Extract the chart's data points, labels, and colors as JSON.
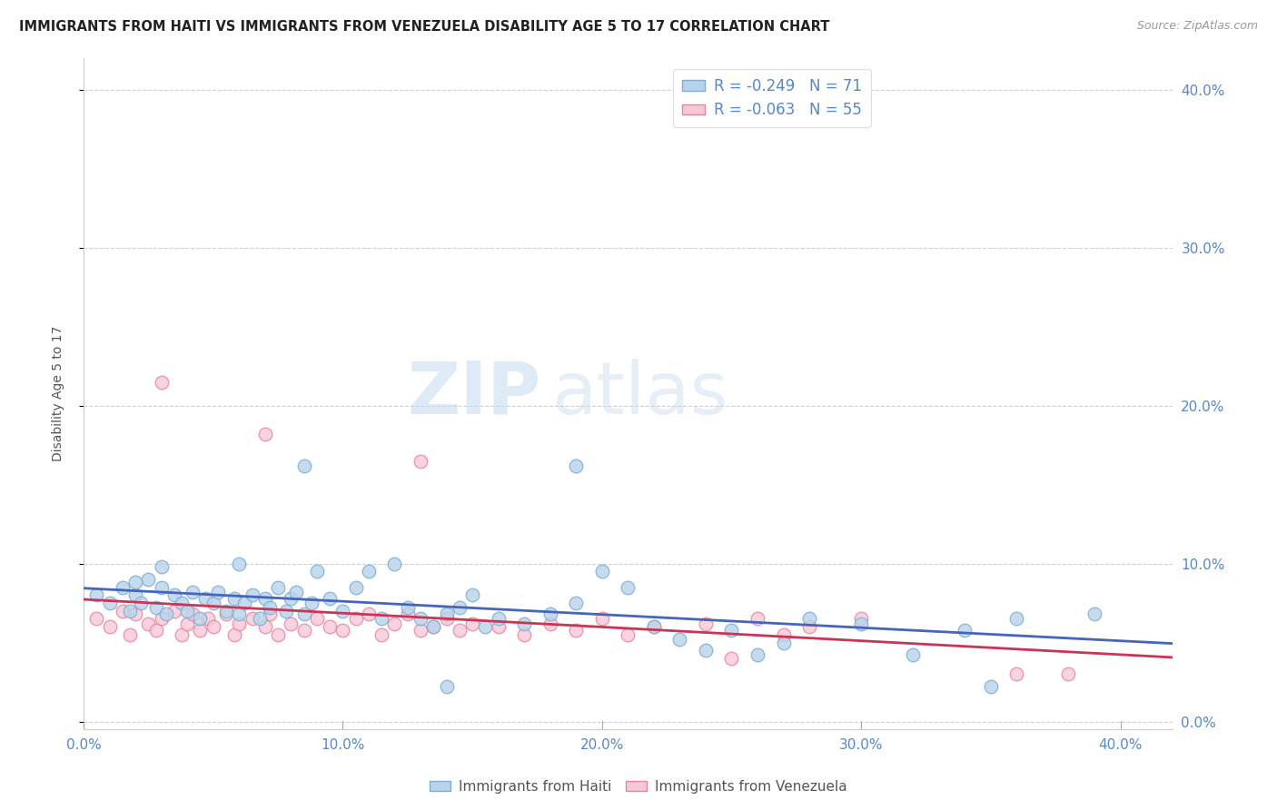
{
  "title": "IMMIGRANTS FROM HAITI VS IMMIGRANTS FROM VENEZUELA DISABILITY AGE 5 TO 17 CORRELATION CHART",
  "source": "Source: ZipAtlas.com",
  "ylabel": "Disability Age 5 to 17",
  "xlim": [
    0.0,
    0.42
  ],
  "ylim": [
    -0.005,
    0.42
  ],
  "xticks": [
    0.0,
    0.1,
    0.2,
    0.3,
    0.4
  ],
  "yticks": [
    0.0,
    0.1,
    0.2,
    0.3,
    0.4
  ],
  "xticklabels": [
    "0.0%",
    "10.0%",
    "20.0%",
    "30.0%",
    "40.0%"
  ],
  "yticklabels": [
    "0.0%",
    "10.0%",
    "20.0%",
    "30.0%",
    "40.0%"
  ],
  "haiti_color": "#b8d4ea",
  "haiti_edge_color": "#7bafd4",
  "venezuela_color": "#f8c8d8",
  "venezuela_edge_color": "#e8849c",
  "haiti_line_color": "#4466bb",
  "venezuela_line_color": "#cc3355",
  "haiti_R": -0.249,
  "haiti_N": 71,
  "venezuela_R": -0.063,
  "venezuela_N": 55,
  "background_color": "#ffffff",
  "grid_color": "#d0d0d0",
  "axis_color": "#5588cc",
  "tick_color": "#888888",
  "haiti_x": [
    0.005,
    0.01,
    0.015,
    0.018,
    0.02,
    0.022,
    0.025,
    0.028,
    0.03,
    0.032,
    0.035,
    0.038,
    0.04,
    0.042,
    0.045,
    0.047,
    0.05,
    0.052,
    0.055,
    0.058,
    0.06,
    0.062,
    0.065,
    0.068,
    0.07,
    0.072,
    0.075,
    0.078,
    0.08,
    0.082,
    0.085,
    0.088,
    0.09,
    0.095,
    0.1,
    0.105,
    0.11,
    0.115,
    0.12,
    0.125,
    0.13,
    0.135,
    0.14,
    0.145,
    0.15,
    0.155,
    0.16,
    0.17,
    0.18,
    0.19,
    0.2,
    0.21,
    0.22,
    0.23,
    0.24,
    0.25,
    0.26,
    0.27,
    0.28,
    0.3,
    0.32,
    0.34,
    0.36,
    0.02,
    0.03,
    0.06,
    0.085,
    0.14,
    0.19,
    0.35,
    0.39
  ],
  "haiti_y": [
    0.08,
    0.075,
    0.085,
    0.07,
    0.08,
    0.075,
    0.09,
    0.072,
    0.085,
    0.068,
    0.08,
    0.075,
    0.07,
    0.082,
    0.065,
    0.078,
    0.075,
    0.082,
    0.07,
    0.078,
    0.068,
    0.075,
    0.08,
    0.065,
    0.078,
    0.072,
    0.085,
    0.07,
    0.078,
    0.082,
    0.068,
    0.075,
    0.095,
    0.078,
    0.07,
    0.085,
    0.095,
    0.065,
    0.1,
    0.072,
    0.065,
    0.06,
    0.068,
    0.072,
    0.08,
    0.06,
    0.065,
    0.062,
    0.068,
    0.075,
    0.095,
    0.085,
    0.06,
    0.052,
    0.045,
    0.058,
    0.042,
    0.05,
    0.065,
    0.062,
    0.042,
    0.058,
    0.065,
    0.088,
    0.098,
    0.1,
    0.162,
    0.022,
    0.162,
    0.022,
    0.068
  ],
  "venezuela_x": [
    0.005,
    0.01,
    0.015,
    0.018,
    0.02,
    0.025,
    0.028,
    0.03,
    0.035,
    0.038,
    0.04,
    0.042,
    0.045,
    0.048,
    0.05,
    0.055,
    0.058,
    0.06,
    0.065,
    0.07,
    0.072,
    0.075,
    0.08,
    0.085,
    0.09,
    0.095,
    0.1,
    0.105,
    0.11,
    0.115,
    0.12,
    0.125,
    0.13,
    0.135,
    0.14,
    0.145,
    0.15,
    0.16,
    0.17,
    0.18,
    0.19,
    0.2,
    0.21,
    0.22,
    0.24,
    0.25,
    0.26,
    0.27,
    0.28,
    0.3,
    0.03,
    0.07,
    0.13,
    0.36,
    0.38
  ],
  "venezuela_y": [
    0.065,
    0.06,
    0.07,
    0.055,
    0.068,
    0.062,
    0.058,
    0.065,
    0.07,
    0.055,
    0.062,
    0.068,
    0.058,
    0.065,
    0.06,
    0.068,
    0.055,
    0.062,
    0.065,
    0.06,
    0.068,
    0.055,
    0.062,
    0.058,
    0.065,
    0.06,
    0.058,
    0.065,
    0.068,
    0.055,
    0.062,
    0.068,
    0.058,
    0.06,
    0.065,
    0.058,
    0.062,
    0.06,
    0.055,
    0.062,
    0.058,
    0.065,
    0.055,
    0.06,
    0.062,
    0.04,
    0.065,
    0.055,
    0.06,
    0.065,
    0.215,
    0.182,
    0.165,
    0.03,
    0.03
  ]
}
